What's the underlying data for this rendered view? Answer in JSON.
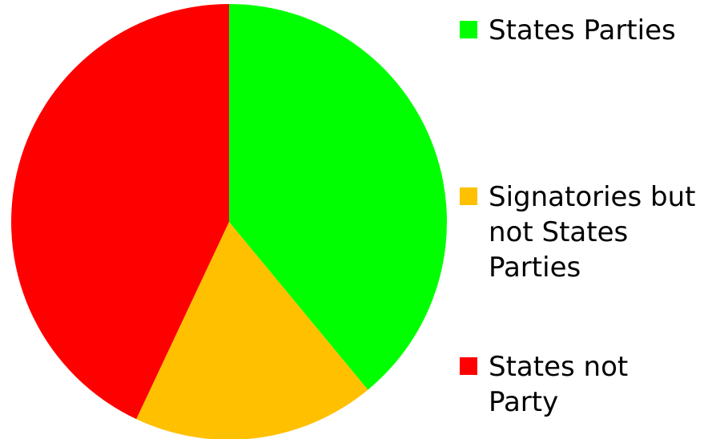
{
  "chart_data": {
    "type": "pie",
    "title": "",
    "slices": [
      {
        "label": "States Parties",
        "value": 39,
        "color": "#00ff00"
      },
      {
        "label": "Signatories but not States Parties",
        "value": 18,
        "color": "#ffc000"
      },
      {
        "label": "States not Party",
        "value": 43,
        "color": "#ff0000"
      }
    ],
    "start_angle_deg": 0,
    "direction": "clockwise",
    "legend_position": "right"
  },
  "legend": {
    "items": [
      {
        "label": "States Parties",
        "color": "#00ff00"
      },
      {
        "label": "Signatories but not States Parties",
        "color": "#ffc000"
      },
      {
        "label": "States not Party",
        "color": "#ff0000"
      }
    ]
  }
}
